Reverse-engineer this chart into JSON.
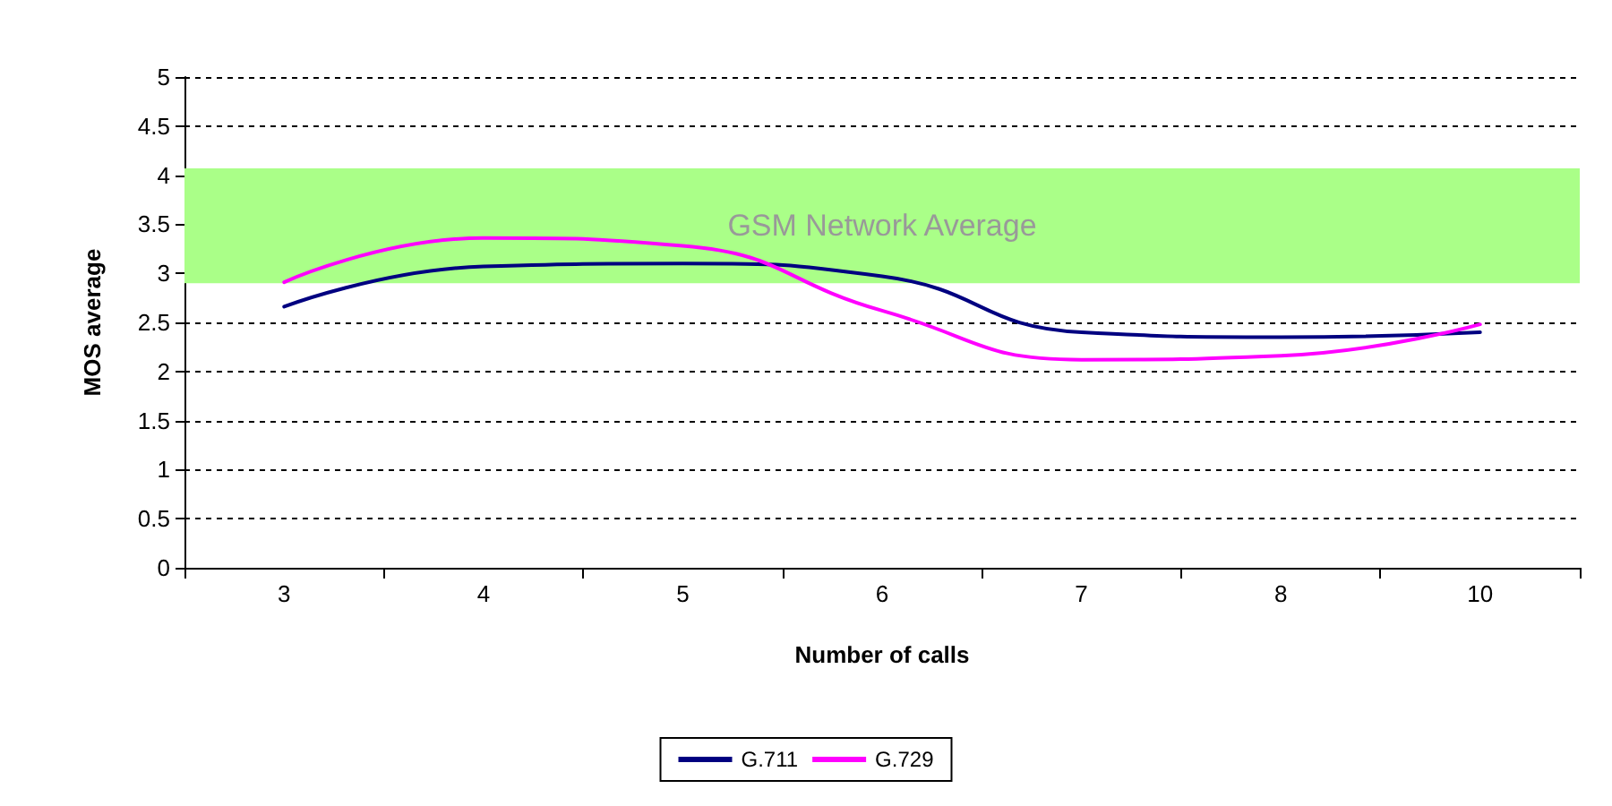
{
  "chart_data": {
    "type": "line",
    "xlabel": "Number of calls",
    "ylabel": "MOS average",
    "categories": [
      "3",
      "4",
      "5",
      "6",
      "7",
      "8",
      "10"
    ],
    "series": [
      {
        "name": "G.711",
        "color": "#000080",
        "values": [
          2.66,
          3.07,
          3.1,
          2.97,
          2.4,
          2.35,
          2.4
        ]
      },
      {
        "name": "G.729",
        "color": "#ff00ff",
        "values": [
          2.91,
          3.36,
          3.28,
          2.62,
          2.12,
          2.16,
          2.48
        ]
      }
    ],
    "ylim": [
      0,
      5
    ],
    "yticks": [
      0,
      0.5,
      1,
      1.5,
      2,
      2.5,
      3,
      3.5,
      4,
      4.5,
      5
    ],
    "bands": [
      {
        "axis": "y",
        "from": 2.9,
        "to": 4.07,
        "label": "GSM Network Average",
        "color": "#aaff88"
      }
    ],
    "grid": "y",
    "legend": "bottom",
    "marker": "none",
    "line_style": "solid"
  }
}
